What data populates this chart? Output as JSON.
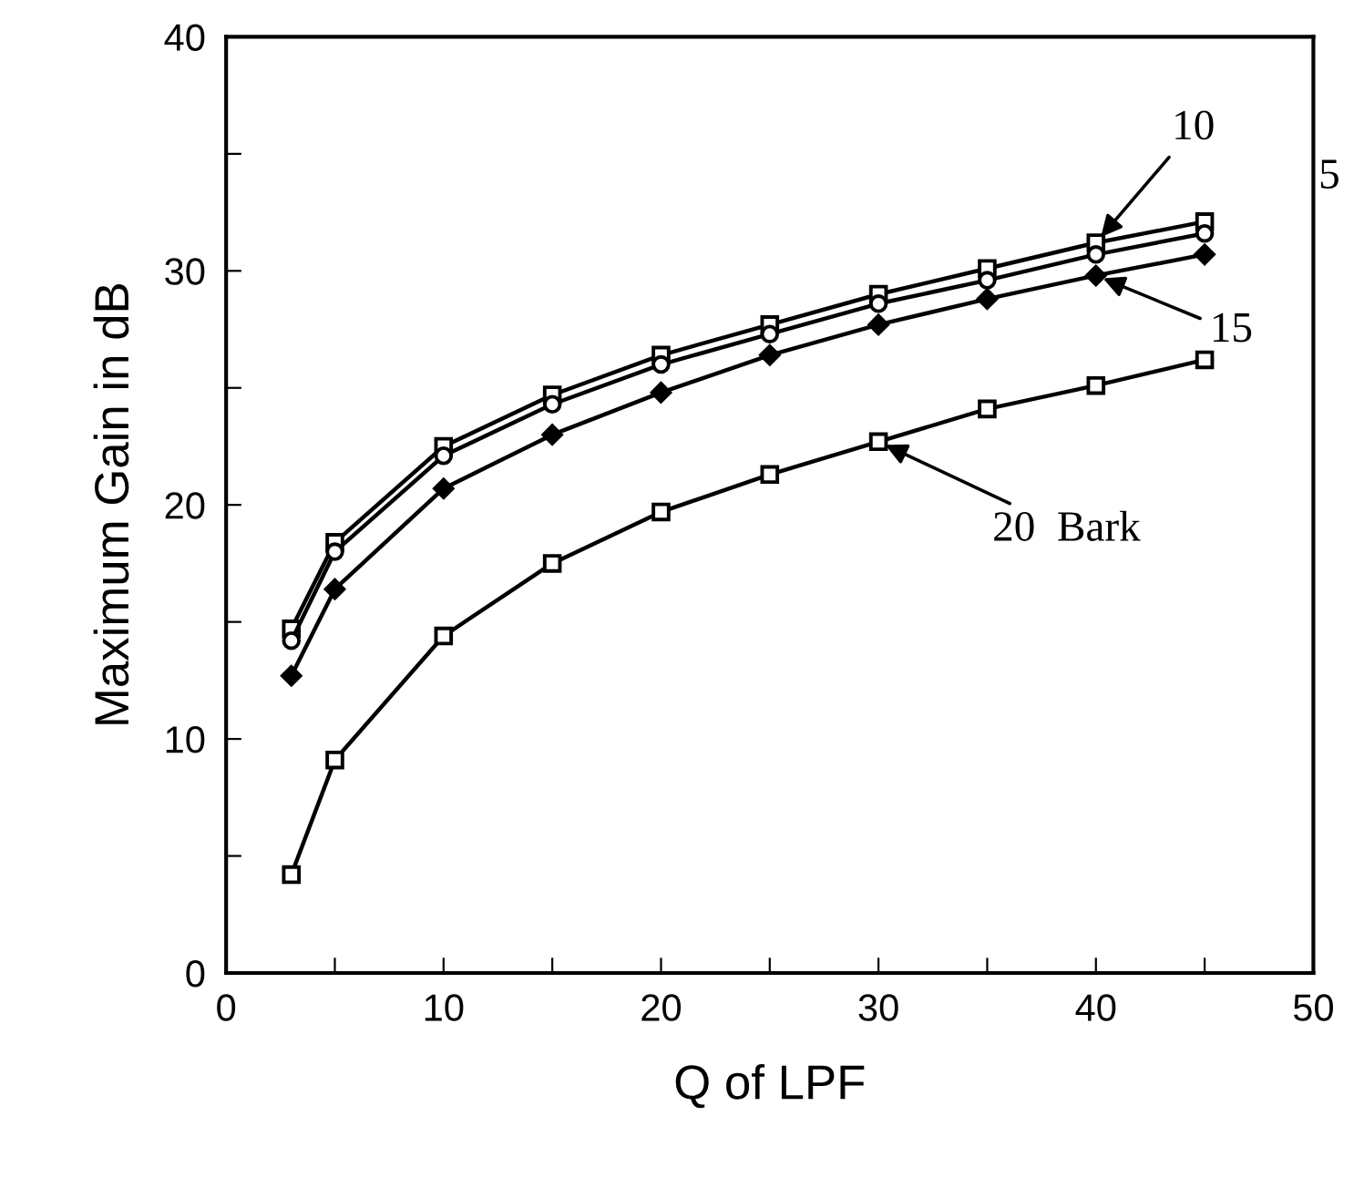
{
  "chart_data": {
    "type": "line",
    "xlabel": "Q of LPF",
    "ylabel": "Maximum Gain in dB",
    "x": [
      3,
      5,
      10,
      15,
      20,
      25,
      30,
      35,
      40,
      45
    ],
    "series": [
      {
        "color": "#000000",
        "marker": "square",
        "values": [
          14.7,
          18.4,
          22.5,
          24.7,
          26.4,
          27.7,
          29.0,
          30.1,
          31.2,
          32.1
        ]
      },
      {
        "color": "#000000",
        "marker": "circle",
        "values": [
          14.2,
          18.0,
          22.1,
          24.3,
          26.0,
          27.3,
          28.6,
          29.6,
          30.7,
          31.6
        ]
      },
      {
        "color": "#000000",
        "marker": "diamond",
        "values": [
          12.7,
          16.4,
          20.7,
          23.0,
          24.8,
          26.4,
          27.7,
          28.8,
          29.8,
          30.7
        ]
      },
      {
        "color": "#000000",
        "marker": "square",
        "values": [
          4.2,
          9.1,
          14.4,
          17.5,
          19.7,
          21.3,
          22.7,
          24.1,
          25.1,
          26.2
        ]
      }
    ],
    "annotations": [
      {
        "text": "10",
        "x": 40,
        "y": 31.2
      },
      {
        "text": "5",
        "x": 45,
        "y": 31.6
      },
      {
        "text": "15",
        "x": 40,
        "y": 29.8
      },
      {
        "text": "20  Bark",
        "x": 30,
        "y": 22.7
      }
    ],
    "xlim": [
      0,
      50
    ],
    "ylim": [
      0,
      40
    ],
    "xticks": [
      0,
      {
        "value": 5,
        "label": null
      },
      10,
      {
        "value": 15,
        "label": null
      },
      20,
      {
        "value": 25,
        "label": null
      },
      30,
      {
        "value": 35,
        "label": null
      },
      40,
      {
        "value": 45,
        "label": null
      },
      50
    ],
    "yticks": [
      0,
      {
        "value": 5,
        "label": null
      },
      10,
      {
        "value": 15,
        "label": null
      },
      20,
      {
        "value": 25,
        "label": null
      },
      30,
      {
        "value": 35,
        "label": null
      },
      40
    ],
    "grid": false,
    "legend": false
  }
}
